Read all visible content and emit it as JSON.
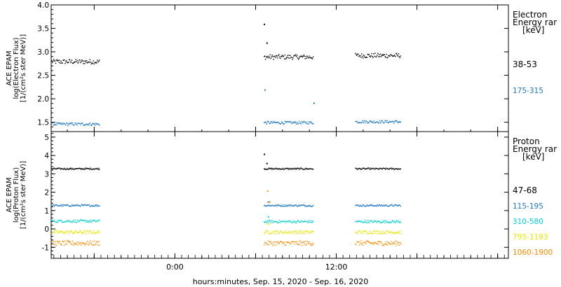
{
  "x_axis": {
    "title": "hours:minutes, Sep. 15, 2020 - Sep. 16, 2020",
    "tick_labels": [
      {
        "label": "0:00",
        "hour": 0
      },
      {
        "label": "12:00",
        "hour": 12
      }
    ],
    "range_hours": [
      -9.2,
      24.8
    ],
    "major_ticks_hours": [
      -6,
      0,
      6,
      12,
      18,
      24
    ],
    "minor_tick_step_hours": 2
  },
  "panels": [
    {
      "id": "electron",
      "ylabel": [
        "ACE EPAM",
        "log(Electron Flux)",
        "[1/(cm²s ster MeV)]"
      ],
      "legend_header": [
        "Electron",
        "Energy ranges",
        "[keV]"
      ],
      "legend_header_visible": [
        "Electron",
        "Energy rar",
        "[keV]"
      ],
      "channels": [
        {
          "label": "38-53",
          "color": "#000000"
        },
        {
          "label": "175-315",
          "color": "#1e78c8"
        }
      ]
    },
    {
      "id": "proton",
      "ylabel": [
        "ACE EPAM",
        "log(Proton Flux)",
        "[1/(cm²s ster MeV)]"
      ],
      "legend_header": [
        "Proton",
        "Energy ranges",
        "[keV]"
      ],
      "legend_header_visible": [
        "Proton",
        "Energy rar",
        "[keV]"
      ],
      "channels": [
        {
          "label": "47-68",
          "color": "#000000"
        },
        {
          "label": "115-195",
          "color": "#1e78c8"
        },
        {
          "label": "310-580",
          "color": "#00d2d2"
        },
        {
          "label": "795-1193",
          "color": "#e6e600"
        },
        {
          "label": "1060-1900",
          "color": "#ff8c00"
        }
      ]
    }
  ],
  "chart_data": [
    {
      "type": "scatter",
      "title": "",
      "xlabel": "hours:minutes, Sep. 15, 2020 - Sep. 16, 2020",
      "ylabel": "ACE EPAM log(Electron Flux) [1/(cm²s ster MeV)]",
      "ylim": [
        1.3,
        4.0
      ],
      "y_ticks": [
        1.5,
        2.0,
        2.5,
        3.0,
        3.5,
        4.0
      ],
      "y_tick_labels": [
        "1.5",
        "2.0",
        "2.5",
        "3.0",
        "3.5",
        "4.0"
      ],
      "legend_position": "right",
      "grid": false,
      "data_segments_hours": [
        [
          -9.2,
          -5.6
        ],
        [
          6.6,
          10.3
        ],
        [
          13.4,
          16.8
        ]
      ],
      "series": [
        {
          "name": "38-53",
          "color": "#000000",
          "levels": [
            2.8,
            2.9,
            2.93
          ],
          "noise": 0.05,
          "spikes": [
            {
              "hour": 6.6,
              "value": 3.6
            },
            {
              "hour": 6.8,
              "value": 3.2
            }
          ]
        },
        {
          "name": "175-315",
          "color": "#1e78c8",
          "levels": [
            1.47,
            1.5,
            1.52
          ],
          "noise": 0.03,
          "spikes": [
            {
              "hour": 6.65,
              "value": 2.2
            },
            {
              "hour": 10.3,
              "value": 1.92
            }
          ]
        }
      ]
    },
    {
      "type": "scatter",
      "title": "",
      "xlabel": "hours:minutes, Sep. 15, 2020 - Sep. 16, 2020",
      "ylabel": "ACE EPAM log(Proton Flux) [1/(cm²s ster MeV)]",
      "ylim": [
        -1.6,
        5.3
      ],
      "y_ticks": [
        -1,
        0,
        1,
        2,
        3,
        4,
        5
      ],
      "y_tick_labels": [
        "-1",
        "0",
        "1",
        "2",
        "3",
        "4",
        "5"
      ],
      "legend_position": "right",
      "grid": false,
      "data_segments_hours": [
        [
          -9.2,
          -5.6
        ],
        [
          6.6,
          10.3
        ],
        [
          13.4,
          16.8
        ]
      ],
      "series": [
        {
          "name": "47-68",
          "color": "#000000",
          "levels": [
            3.3,
            3.3,
            3.3
          ],
          "noise": 0.04,
          "spikes": [
            {
              "hour": 6.6,
              "value": 4.1
            },
            {
              "hour": 6.8,
              "value": 3.6
            }
          ]
        },
        {
          "name": "115-195",
          "color": "#1e78c8",
          "levels": [
            1.3,
            1.3,
            1.3
          ],
          "noise": 0.05,
          "spikes": [
            {
              "hour": 6.9,
              "value": 1.5
            }
          ]
        },
        {
          "name": "310-580",
          "color": "#00d2d2",
          "levels": [
            0.45,
            0.42,
            0.42
          ],
          "noise": 0.07,
          "spikes": [
            {
              "hour": 6.9,
              "value": 0.7
            }
          ]
        },
        {
          "name": "795-1193",
          "color": "#e6e600",
          "levels": [
            -0.15,
            -0.15,
            -0.15
          ],
          "noise": 0.09,
          "spikes": [
            {
              "hour": 6.9,
              "value": 0.3
            }
          ]
        },
        {
          "name": "1060-1900",
          "color": "#ff8c00",
          "levels": [
            -0.75,
            -0.75,
            -0.75
          ],
          "noise": 0.13,
          "spikes": [
            {
              "hour": 6.85,
              "value": 2.1
            },
            {
              "hour": 7.0,
              "value": 1.5
            }
          ]
        }
      ]
    }
  ]
}
